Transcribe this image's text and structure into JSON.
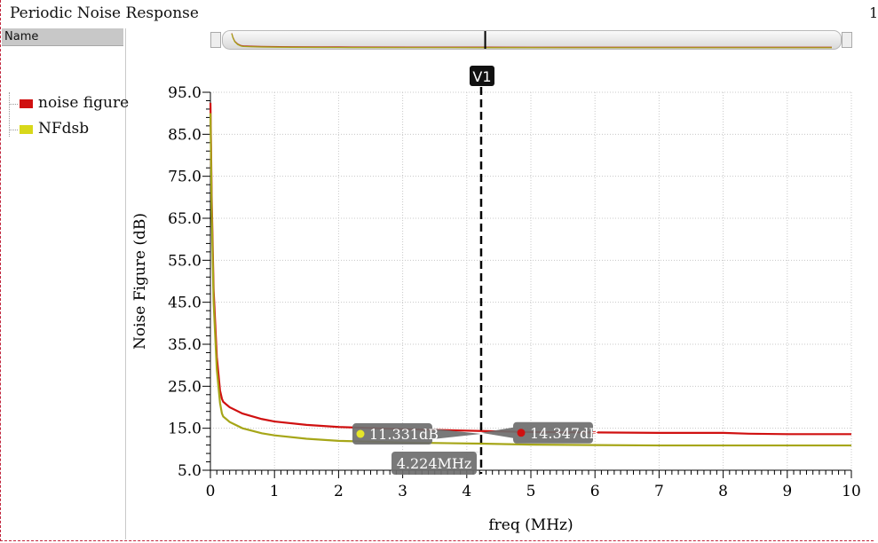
{
  "window": {
    "title": "Periodic Noise Response",
    "title_right": "1"
  },
  "sidebar": {
    "header": "Name"
  },
  "legend": [
    {
      "label": "noise figure",
      "color": "#d01010"
    },
    {
      "label": "NFdsb",
      "color": "#d8d81a"
    }
  ],
  "chart_data": {
    "type": "line",
    "xlabel": "freq (MHz)",
    "ylabel": "Noise Figure (dB)",
    "xlim": [
      0,
      10
    ],
    "ylim": [
      5.0,
      95.0
    ],
    "x_ticks": [
      0,
      1,
      2,
      3,
      4,
      5,
      6,
      7,
      8,
      9,
      10
    ],
    "y_ticks": [
      "5.0",
      "15.0",
      "25.0",
      "35.0",
      "45.0",
      "55.0",
      "65.0",
      "75.0",
      "85.0",
      "95.0"
    ],
    "grid": true,
    "series": [
      {
        "name": "noise figure",
        "color": "#d01010",
        "x": [
          0.001,
          0.02,
          0.05,
          0.1,
          0.15,
          0.18,
          0.2,
          0.3,
          0.5,
          0.8,
          1.0,
          1.5,
          2.0,
          3.0,
          4.224,
          5.0,
          6.0,
          7.0,
          8.0,
          8.4,
          9.0,
          10.0
        ],
        "y": [
          92.5,
          70.0,
          48.0,
          32.0,
          24.0,
          22.0,
          21.3,
          20.0,
          18.5,
          17.2,
          16.6,
          15.8,
          15.3,
          14.8,
          14.347,
          14.1,
          14.0,
          13.9,
          13.9,
          13.7,
          13.6,
          13.6
        ]
      },
      {
        "name": "NFdsb",
        "color": "#a6a618",
        "x": [
          0.001,
          0.02,
          0.05,
          0.1,
          0.15,
          0.18,
          0.2,
          0.3,
          0.5,
          0.8,
          1.0,
          1.5,
          2.0,
          3.0,
          4.224,
          5.0,
          6.0,
          7.0,
          8.0,
          9.0,
          10.0
        ],
        "y": [
          90.0,
          67.0,
          45.0,
          29.0,
          21.0,
          18.5,
          17.8,
          16.5,
          15.0,
          13.8,
          13.3,
          12.5,
          12.0,
          11.6,
          11.331,
          11.1,
          11.0,
          10.9,
          10.9,
          10.9,
          10.9
        ]
      }
    ],
    "marker": {
      "name": "V1",
      "x": 4.224,
      "x_label": "4.224MHz",
      "values": [
        {
          "series": "NFdsb",
          "label": "11.331dB",
          "y": 11.331
        },
        {
          "series": "noise figure",
          "label": "14.347dB",
          "y": 14.347
        }
      ]
    }
  }
}
